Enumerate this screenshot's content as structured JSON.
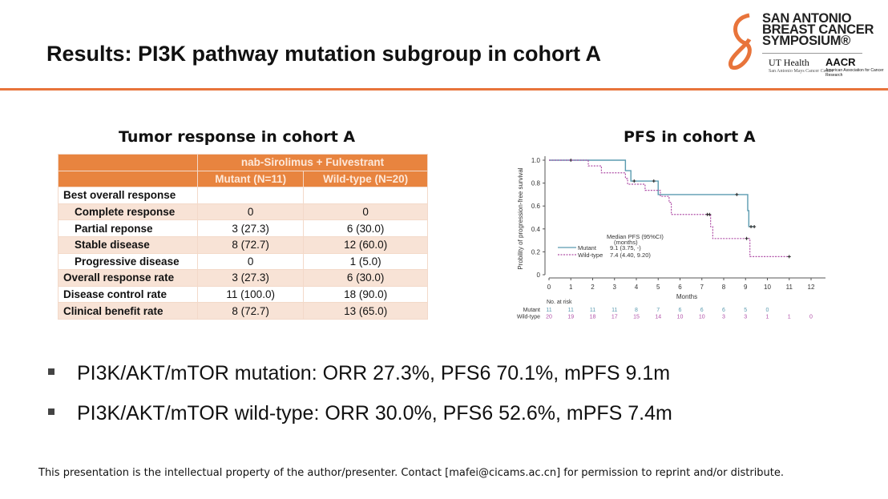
{
  "header": {
    "title": "Results: PI3K pathway mutation subgroup in cohort A"
  },
  "logo": {
    "line1": "SAN ANTONIO",
    "line2": "BREAST CANCER",
    "line3": "SYMPOSIUM®",
    "ut": "UT Health",
    "ut_sub": "San Antonio Mays Cancer Center",
    "aacr": "AACR",
    "aacr_sub": "American Association for Cancer Research"
  },
  "table_title": "Tumor response in cohort A",
  "table": {
    "group_header": "nab-Sirolimus + Fulvestrant",
    "columns": [
      "Mutant (N=11)",
      "Wild-type (N=20)"
    ],
    "rows": [
      {
        "label": "Best overall response",
        "mut": "",
        "wt": ""
      },
      {
        "label": "Complete response",
        "mut": "0",
        "wt": "0"
      },
      {
        "label": "Partial reponse",
        "mut": "3 (27.3)",
        "wt": "6 (30.0)"
      },
      {
        "label": "Stable disease",
        "mut": "8 (72.7)",
        "wt": "12 (60.0)"
      },
      {
        "label": "Progressive disease",
        "mut": "0",
        "wt": "1 (5.0)"
      },
      {
        "label": "Overall response rate",
        "mut": "3 (27.3)",
        "wt": "6 (30.0)"
      },
      {
        "label": "Disease control rate",
        "mut": "11 (100.0)",
        "wt": "18 (90.0)"
      },
      {
        "label": "Clinical benefit rate",
        "mut": "8 (72.7)",
        "wt": "13 (65.0)"
      }
    ]
  },
  "plot_title": "PFS in cohort A",
  "chart_data": {
    "type": "line",
    "ylabel": "Probility of progression-free survival",
    "xlabel": "Months",
    "xticks": [
      "0",
      "1",
      "2",
      "3",
      "4",
      "5",
      "6",
      "7",
      "8",
      "9",
      "10",
      "11",
      "12"
    ],
    "yticks": [
      "0",
      "0.2",
      "0.4",
      "0.6",
      "0.8",
      "1.0"
    ],
    "xlim": [
      0,
      12
    ],
    "ylim": [
      0,
      1
    ],
    "legend_title": "Median PFS (95%CI)",
    "legend_subtitle": "(months)",
    "series": [
      {
        "name": "Mutant",
        "median": "9.1 (3.75, -)",
        "color": "#5b9bb0",
        "steps": [
          [
            0,
            1
          ],
          [
            3.5,
            0.909
          ],
          [
            3.75,
            0.818
          ],
          [
            5.0,
            0.7
          ],
          [
            9.1,
            0.56
          ],
          [
            9.15,
            0.42
          ],
          [
            9.4,
            0.42
          ]
        ],
        "censor": [
          [
            1,
            1
          ],
          [
            3.9,
            0.818
          ],
          [
            4.8,
            0.818
          ],
          [
            8.6,
            0.7
          ],
          [
            9.25,
            0.42
          ],
          [
            9.4,
            0.42
          ]
        ]
      },
      {
        "name": "Wild-type",
        "median": "7.4 (4.40, 9.20)",
        "color": "#b050a8",
        "steps": [
          [
            0,
            1
          ],
          [
            1.8,
            0.95
          ],
          [
            2.4,
            0.89
          ],
          [
            3.5,
            0.84
          ],
          [
            3.6,
            0.79
          ],
          [
            4.4,
            0.737
          ],
          [
            5.1,
            0.684
          ],
          [
            5.5,
            0.632
          ],
          [
            5.6,
            0.526
          ],
          [
            7.4,
            0.42
          ],
          [
            7.5,
            0.316
          ],
          [
            9.2,
            0.158
          ],
          [
            11,
            0.158
          ]
        ],
        "censor": [
          [
            7.25,
            0.526
          ],
          [
            7.35,
            0.526
          ],
          [
            9.05,
            0.316
          ],
          [
            11,
            0.158
          ]
        ]
      }
    ],
    "risk_label": "No. at risk",
    "risk": {
      "Mutant": [
        "11",
        "11",
        "11",
        "11",
        "8",
        "7",
        "6",
        "6",
        "6",
        "5",
        "0"
      ],
      "Wild-type": [
        "20",
        "19",
        "18",
        "17",
        "15",
        "14",
        "10",
        "10",
        "3",
        "3",
        "1",
        "1",
        "0"
      ]
    }
  },
  "bullets": [
    "PI3K/AKT/mTOR mutation: ORR 27.3%, PFS6 70.1%, mPFS 9.1m",
    "PI3K/AKT/mTOR wild-type: ORR 30.0%, PFS6 52.6%, mPFS 7.4m"
  ],
  "footer": "This presentation is the intellectual property of the author/presenter. Contact [mafei@cicams.ac.cn] for permission to reprint and/or distribute."
}
